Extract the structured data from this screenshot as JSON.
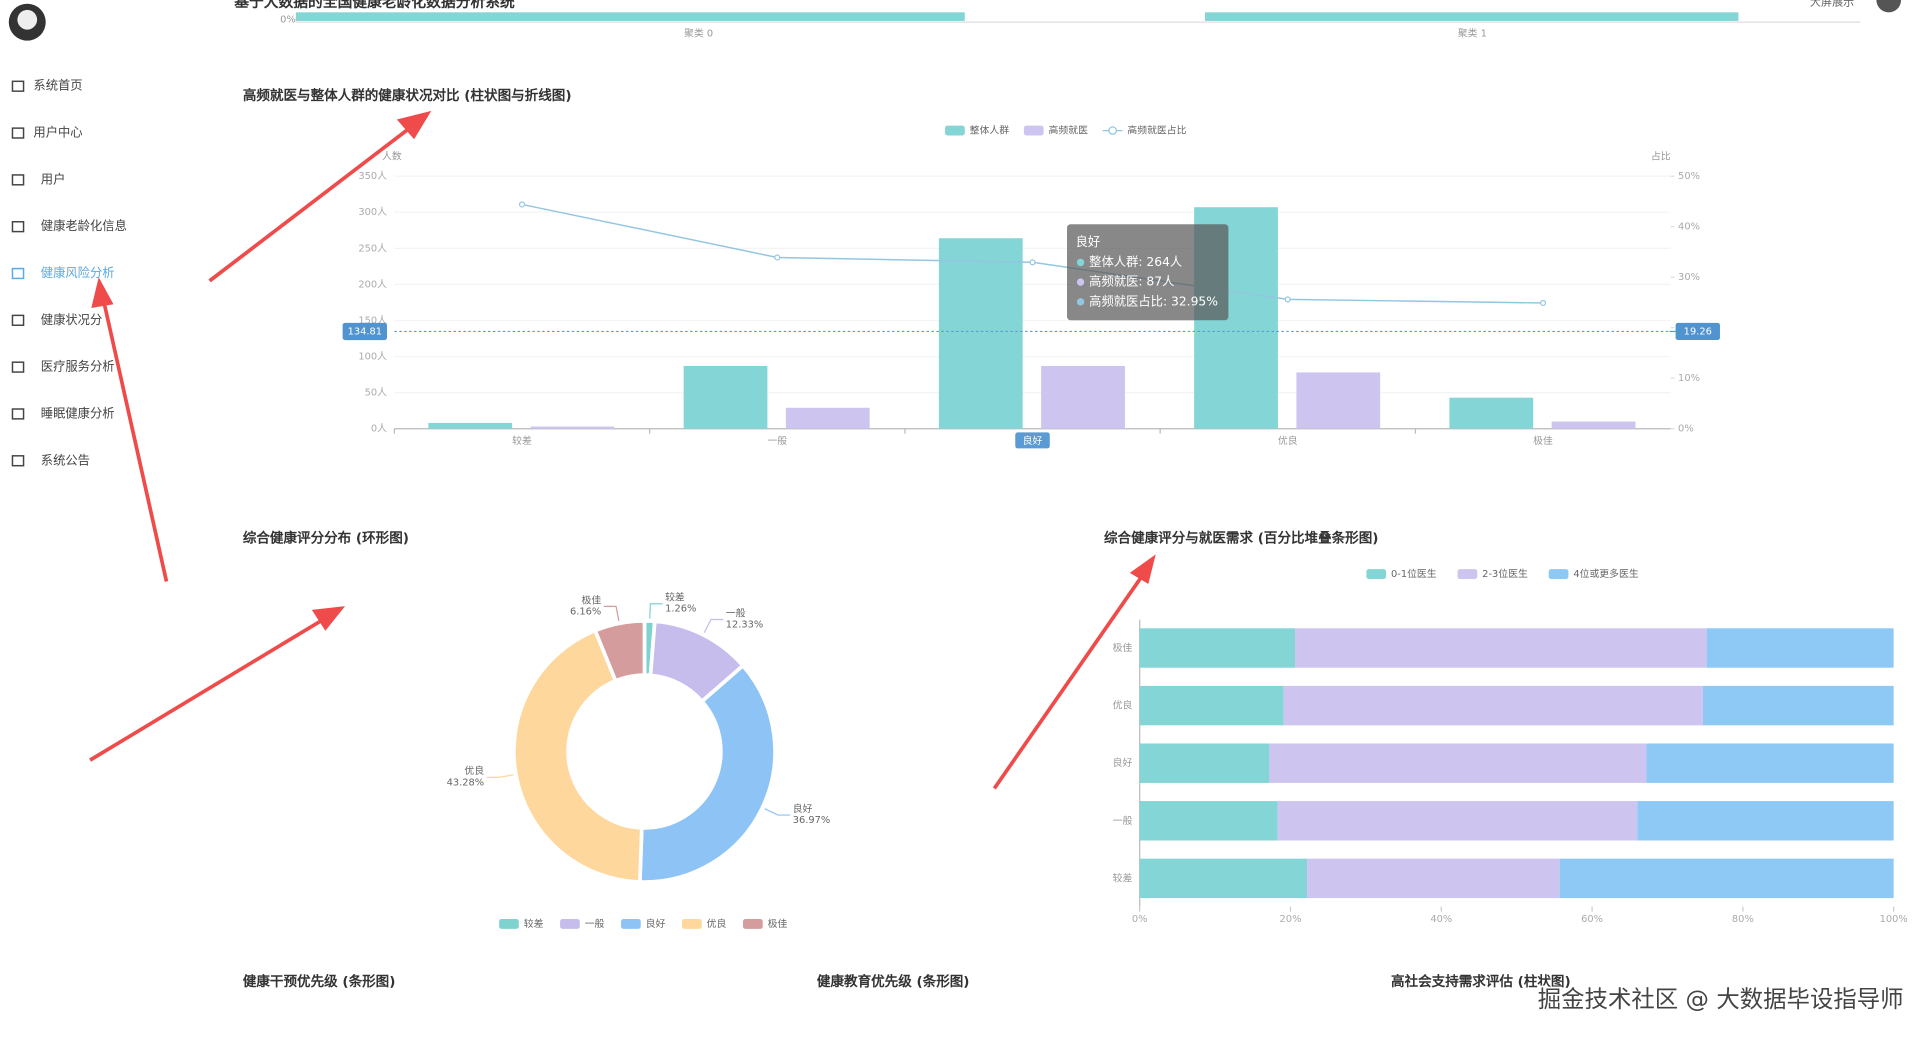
{
  "header": {
    "title": "基于大数据的全国健康老龄化数据分析系统",
    "fullscreen": "大屏展示",
    "top_strip": {
      "tick": "0%",
      "labels": [
        "聚类 0",
        "聚类 1"
      ]
    }
  },
  "sidebar": {
    "items": [
      "系统首页",
      "用户中心",
      "用户",
      "健康老龄化信息",
      "健康风险分析",
      "健康状况分",
      "医疗服务分析",
      "睡眠健康分析",
      "系统公告"
    ],
    "active": 4
  },
  "chart_data": [
    {
      "type": "bar-line",
      "title": "高频就医与整体人群的健康状况对比 (柱状图与折线图)",
      "categories": [
        "较差",
        "一般",
        "良好",
        "优良",
        "极佳"
      ],
      "series": [
        {
          "name": "整体人群",
          "color": "#84d5d5",
          "values": [
            8,
            87,
            264,
            307,
            43
          ]
        },
        {
          "name": "高频就医",
          "color": "#cdc4f0",
          "values": [
            3,
            29,
            87,
            78,
            10
          ]
        },
        {
          "name": "高频就医占比",
          "color": "#94c6e2",
          "type": "line",
          "axis": "y2",
          "values": [
            44.4,
            33.9,
            32.95,
            25.6,
            24.9
          ]
        }
      ],
      "y_label": "人数",
      "y2_label": "占比",
      "ylim": [
        0,
        350
      ],
      "yticks": [
        {
          "value": 0,
          "label": "0人"
        },
        {
          "value": 50,
          "label": "50人"
        },
        {
          "value": 100,
          "label": "100人"
        },
        {
          "value": 150,
          "label": "150人"
        },
        {
          "value": 200,
          "label": "200人"
        },
        {
          "value": 250,
          "label": "250人"
        },
        {
          "value": 300,
          "label": "300人"
        },
        {
          "value": 350,
          "label": "350人"
        }
      ],
      "y2lim": [
        0,
        50
      ],
      "y2ticks": [
        {
          "value": 0,
          "label": "0%"
        },
        {
          "value": 10,
          "label": "10%"
        },
        {
          "value": 20,
          "label": "20%"
        },
        {
          "value": 30,
          "label": "30%"
        },
        {
          "value": 40,
          "label": "40%"
        },
        {
          "value": 50,
          "label": "50%"
        }
      ],
      "mark_lines": [
        {
          "value": 134.81,
          "axis": "y"
        },
        {
          "value": 19.26,
          "axis": "y2"
        }
      ],
      "highlight": 2,
      "tooltip": {
        "title": "良好",
        "lines": [
          "整体人群: 264人",
          "高频就医: 87人",
          "高频就医占比: 32.95%"
        ]
      }
    },
    {
      "type": "donut",
      "title": "综合健康评分分布 (环形图)",
      "categories": [
        "较差",
        "一般",
        "良好",
        "优良",
        "极佳"
      ],
      "values": [
        1.26,
        12.33,
        36.97,
        43.28,
        6.16
      ],
      "value_labels": [
        "1.26%",
        "12.33%",
        "36.97%",
        "43.28%",
        "6.16%"
      ],
      "colors": [
        "#7fd3cf",
        "#c7bdec",
        "#8ec4f5",
        "#fdd79b",
        "#d49c9c"
      ],
      "legend": "bottom"
    },
    {
      "type": "stacked-bar-horizontal",
      "title": "综合健康评分与就医需求 (百分比堆叠条形图)",
      "categories": [
        "较差",
        "一般",
        "良好",
        "优良",
        "极佳"
      ],
      "series": [
        {
          "name": "0-1位医生",
          "color": "#84d5d5",
          "values": [
            22.2,
            18.3,
            17.2,
            19.1,
            20.6
          ]
        },
        {
          "name": "2-3位医生",
          "color": "#cdc4f0",
          "values": [
            33.5,
            47.7,
            50,
            55.6,
            54.6
          ]
        },
        {
          "name": "4位或更多医生",
          "color": "#8ec8f5",
          "values": [
            44.3,
            34,
            32.8,
            25.3,
            24.8
          ]
        }
      ],
      "xlim": [
        0,
        100
      ],
      "xticks": [
        {
          "value": 0,
          "label": "0%"
        },
        {
          "value": 20,
          "label": "20%"
        },
        {
          "value": 40,
          "label": "40%"
        },
        {
          "value": 60,
          "label": "60%"
        },
        {
          "value": 80,
          "label": "80%"
        },
        {
          "value": 100,
          "label": "100%"
        }
      ],
      "legend": "top"
    }
  ],
  "sections": [
    "健康干预优先级 (条形图)",
    "健康教育优先级 (条形图)",
    "高社会支持需求评估 (柱状图)"
  ],
  "watermark": "掘金技术社区 @ 大数据毕设指导师"
}
